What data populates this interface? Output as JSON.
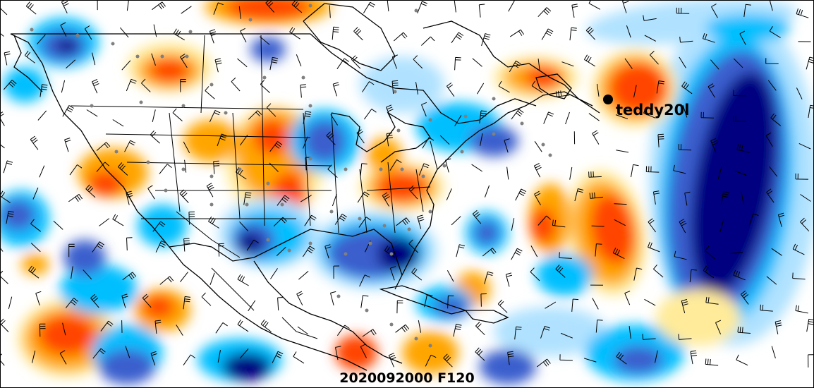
{
  "map": {
    "valid_time_label": "2020092000 F120",
    "storm": {
      "label": "teddy20l",
      "marker": "filled-circle"
    },
    "colors": {
      "deep_blue": "#000080",
      "blue": "#3a5fcd",
      "light_blue": "#00bfff",
      "pale_blue": "#b0e2ff",
      "pale_yellow": "#ffeb99",
      "orange": "#ffa500",
      "red_orange": "#ff4500",
      "dark_red": "#b22222",
      "coastline": "#000000",
      "wind_barb": "#000000",
      "station_dot": "#808080"
    }
  }
}
